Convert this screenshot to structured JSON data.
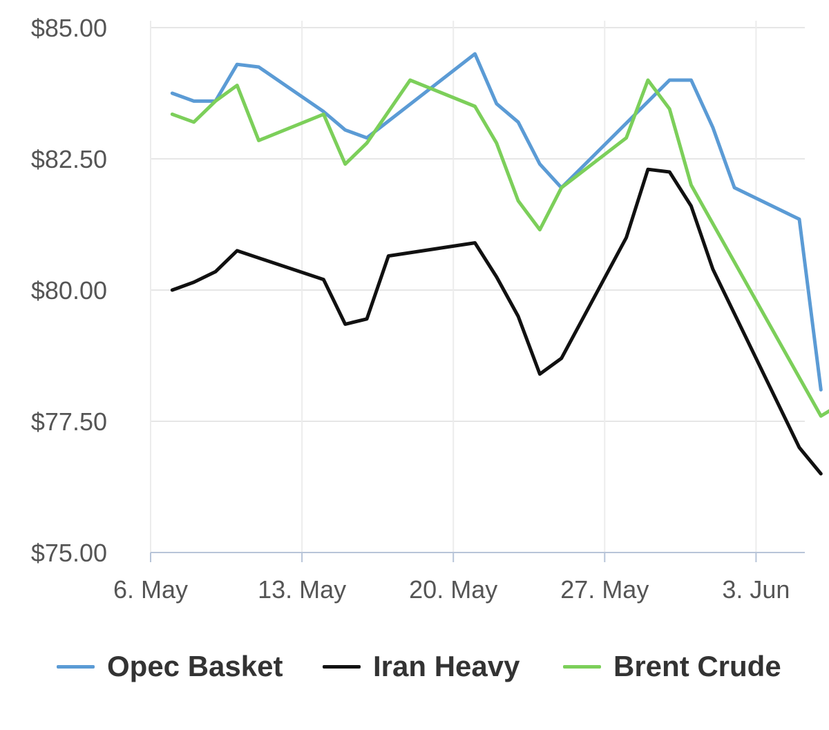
{
  "chart_data": {
    "type": "line",
    "title": "",
    "xlabel": "",
    "ylabel": "",
    "y_ticks": [
      "$75.00",
      "$77.50",
      "$80.00",
      "$82.50",
      "$85.00"
    ],
    "y_tick_values": [
      75,
      77.5,
      80,
      82.5,
      85
    ],
    "ylim": [
      75,
      85
    ],
    "x_ticks": [
      "6. May",
      "13. May",
      "20. May",
      "27. May",
      "3. Jun"
    ],
    "x_tick_values": [
      "2024-05-06",
      "2024-05-13",
      "2024-05-20",
      "2024-05-27",
      "2024-06-03"
    ],
    "xlim": [
      "2024-05-06",
      "2024-06-05"
    ],
    "grid": true,
    "legend_position": "bottom",
    "series": [
      {
        "name": "Opec Basket",
        "color": "#5b9bd5",
        "points": [
          {
            "x": "2024-05-07",
            "y": 83.75
          },
          {
            "x": "2024-05-08",
            "y": 83.6
          },
          {
            "x": "2024-05-09",
            "y": 83.6
          },
          {
            "x": "2024-05-10",
            "y": 84.3
          },
          {
            "x": "2024-05-11",
            "y": 84.25
          },
          {
            "x": "2024-05-14",
            "y": 83.4
          },
          {
            "x": "2024-05-15",
            "y": 83.05
          },
          {
            "x": "2024-05-16",
            "y": 82.9
          },
          {
            "x": "2024-05-21",
            "y": 84.5
          },
          {
            "x": "2024-05-22",
            "y": 83.55
          },
          {
            "x": "2024-05-23",
            "y": 83.2
          },
          {
            "x": "2024-05-24",
            "y": 82.4
          },
          {
            "x": "2024-05-25",
            "y": 81.95
          },
          {
            "x": "2024-05-30",
            "y": 84.0
          },
          {
            "x": "2024-05-31",
            "y": 84.0
          },
          {
            "x": "2024-06-01",
            "y": 83.1
          },
          {
            "x": "2024-06-02",
            "y": 81.95
          },
          {
            "x": "2024-06-05",
            "y": 81.35
          },
          {
            "x": "2024-06-06",
            "y": 78.1
          }
        ]
      },
      {
        "name": "Iran Heavy",
        "color": "#111111",
        "points": [
          {
            "x": "2024-05-07",
            "y": 80.0
          },
          {
            "x": "2024-05-08",
            "y": 80.15
          },
          {
            "x": "2024-05-09",
            "y": 80.35
          },
          {
            "x": "2024-05-10",
            "y": 80.75
          },
          {
            "x": "2024-05-14",
            "y": 80.2
          },
          {
            "x": "2024-05-15",
            "y": 79.35
          },
          {
            "x": "2024-05-16",
            "y": 79.45
          },
          {
            "x": "2024-05-17",
            "y": 80.65
          },
          {
            "x": "2024-05-21",
            "y": 80.9
          },
          {
            "x": "2024-05-22",
            "y": 80.25
          },
          {
            "x": "2024-05-23",
            "y": 79.5
          },
          {
            "x": "2024-05-24",
            "y": 78.4
          },
          {
            "x": "2024-05-25",
            "y": 78.7
          },
          {
            "x": "2024-05-28",
            "y": 81.0
          },
          {
            "x": "2024-05-29",
            "y": 82.3
          },
          {
            "x": "2024-05-30",
            "y": 82.25
          },
          {
            "x": "2024-05-31",
            "y": 81.6
          },
          {
            "x": "2024-06-01",
            "y": 80.4
          },
          {
            "x": "2024-06-05",
            "y": 77.0
          },
          {
            "x": "2024-06-06",
            "y": 76.5
          }
        ]
      },
      {
        "name": "Brent Crude",
        "color": "#7ccf5a",
        "points": [
          {
            "x": "2024-05-07",
            "y": 83.35
          },
          {
            "x": "2024-05-08",
            "y": 83.2
          },
          {
            "x": "2024-05-09",
            "y": 83.6
          },
          {
            "x": "2024-05-10",
            "y": 83.9
          },
          {
            "x": "2024-05-11",
            "y": 82.85
          },
          {
            "x": "2024-05-14",
            "y": 83.35
          },
          {
            "x": "2024-05-15",
            "y": 82.4
          },
          {
            "x": "2024-05-16",
            "y": 82.8
          },
          {
            "x": "2024-05-18",
            "y": 84.0
          },
          {
            "x": "2024-05-21",
            "y": 83.5
          },
          {
            "x": "2024-05-22",
            "y": 82.8
          },
          {
            "x": "2024-05-23",
            "y": 81.7
          },
          {
            "x": "2024-05-24",
            "y": 81.15
          },
          {
            "x": "2024-05-25",
            "y": 81.95
          },
          {
            "x": "2024-05-28",
            "y": 82.9
          },
          {
            "x": "2024-05-29",
            "y": 84.0
          },
          {
            "x": "2024-05-30",
            "y": 83.45
          },
          {
            "x": "2024-05-31",
            "y": 82.0
          },
          {
            "x": "2024-06-06",
            "y": 77.6
          },
          {
            "x": "2024-06-07",
            "y": 77.85
          }
        ]
      }
    ]
  }
}
